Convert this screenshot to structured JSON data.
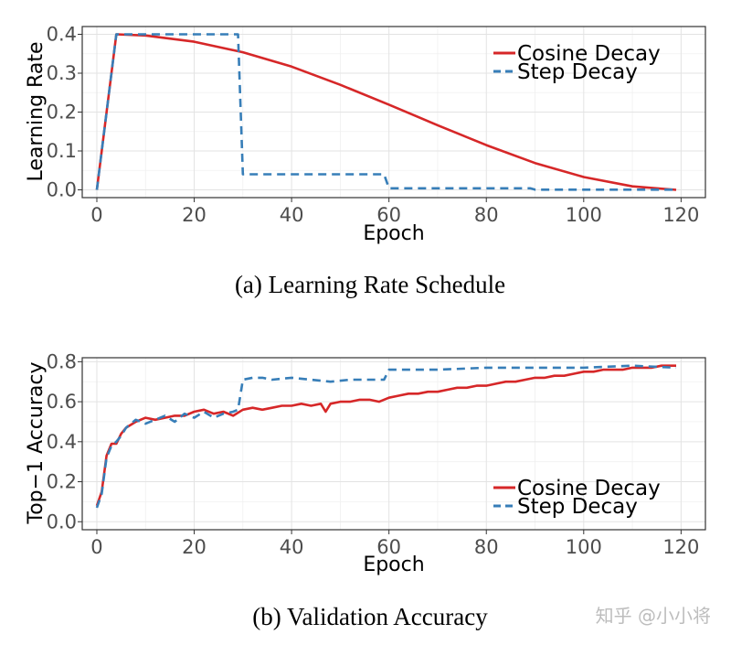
{
  "chart_data": [
    {
      "type": "line",
      "id": "lr",
      "caption": "(a) Learning Rate Schedule",
      "xlabel": "Epoch",
      "ylabel": "Learning Rate",
      "xlim": [
        -3,
        125
      ],
      "ylim": [
        -0.02,
        0.42
      ],
      "xticks": [
        0,
        20,
        40,
        60,
        80,
        100,
        120
      ],
      "xtick_labels": [
        "0",
        "20",
        "40",
        "60",
        "80",
        "100",
        "120"
      ],
      "yticks": [
        0.0,
        0.1,
        0.2,
        0.3,
        0.4
      ],
      "ytick_labels": [
        "0.0",
        "0.1",
        "0.2",
        "0.3",
        "0.4"
      ],
      "grid": true,
      "legend_position": "top-right",
      "series": [
        {
          "name": "Cosine Decay",
          "color": "#d62728",
          "style": "solid",
          "x": [
            0,
            4,
            10,
            20,
            30,
            40,
            50,
            60,
            70,
            80,
            90,
            100,
            110,
            119
          ],
          "y": [
            0.0,
            0.4,
            0.397,
            0.381,
            0.354,
            0.317,
            0.27,
            0.219,
            0.166,
            0.115,
            0.069,
            0.033,
            0.009,
            0.0
          ]
        },
        {
          "name": "Step Decay",
          "color": "#377eb8",
          "style": "dashed",
          "x": [
            0,
            4,
            29,
            30,
            59,
            60,
            89,
            90,
            119
          ],
          "y": [
            0.0,
            0.4,
            0.4,
            0.04,
            0.04,
            0.004,
            0.004,
            0.0004,
            0.0004
          ]
        }
      ]
    },
    {
      "type": "line",
      "id": "acc",
      "caption": "(b) Validation Accuracy",
      "xlabel": "Epoch",
      "ylabel": "Top−1 Accuracy",
      "xlim": [
        -3,
        125
      ],
      "ylim": [
        -0.04,
        0.82
      ],
      "xticks": [
        0,
        20,
        40,
        60,
        80,
        100,
        120
      ],
      "xtick_labels": [
        "0",
        "20",
        "40",
        "60",
        "80",
        "100",
        "120"
      ],
      "yticks": [
        0.0,
        0.2,
        0.4,
        0.6,
        0.8
      ],
      "ytick_labels": [
        "0.0",
        "0.2",
        "0.4",
        "0.6",
        "0.8"
      ],
      "grid": true,
      "legend_position": "bottom-right",
      "series": [
        {
          "name": "Cosine Decay",
          "color": "#d62728",
          "style": "solid",
          "x": [
            0,
            1,
            2,
            3,
            4,
            5,
            6,
            8,
            10,
            12,
            14,
            16,
            18,
            20,
            22,
            24,
            26,
            28,
            30,
            32,
            34,
            36,
            38,
            40,
            42,
            44,
            46,
            47,
            48,
            50,
            52,
            54,
            56,
            58,
            60,
            62,
            64,
            66,
            68,
            70,
            72,
            74,
            76,
            78,
            80,
            82,
            84,
            86,
            88,
            90,
            92,
            94,
            96,
            98,
            100,
            102,
            104,
            106,
            108,
            110,
            112,
            114,
            116,
            118,
            119
          ],
          "y": [
            0.08,
            0.15,
            0.33,
            0.39,
            0.39,
            0.44,
            0.47,
            0.5,
            0.52,
            0.51,
            0.52,
            0.53,
            0.53,
            0.55,
            0.56,
            0.54,
            0.55,
            0.53,
            0.56,
            0.57,
            0.56,
            0.57,
            0.58,
            0.58,
            0.59,
            0.58,
            0.59,
            0.55,
            0.59,
            0.6,
            0.6,
            0.61,
            0.61,
            0.6,
            0.62,
            0.63,
            0.64,
            0.64,
            0.65,
            0.65,
            0.66,
            0.67,
            0.67,
            0.68,
            0.68,
            0.69,
            0.7,
            0.7,
            0.71,
            0.72,
            0.72,
            0.73,
            0.73,
            0.74,
            0.75,
            0.75,
            0.76,
            0.76,
            0.76,
            0.77,
            0.77,
            0.77,
            0.78,
            0.78,
            0.78
          ]
        },
        {
          "name": "Step Decay",
          "color": "#377eb8",
          "style": "dashed",
          "x": [
            0,
            1,
            2,
            3,
            4,
            5,
            6,
            7,
            8,
            10,
            12,
            14,
            16,
            18,
            20,
            22,
            24,
            26,
            28,
            29,
            30,
            32,
            34,
            36,
            40,
            44,
            48,
            52,
            56,
            59,
            60,
            64,
            70,
            80,
            90,
            100,
            110,
            119
          ],
          "y": [
            0.07,
            0.14,
            0.32,
            0.38,
            0.4,
            0.43,
            0.47,
            0.49,
            0.51,
            0.49,
            0.51,
            0.53,
            0.5,
            0.54,
            0.52,
            0.55,
            0.52,
            0.54,
            0.55,
            0.56,
            0.71,
            0.72,
            0.72,
            0.71,
            0.72,
            0.71,
            0.7,
            0.71,
            0.71,
            0.71,
            0.76,
            0.76,
            0.76,
            0.77,
            0.77,
            0.77,
            0.78,
            0.77
          ]
        }
      ]
    }
  ],
  "watermark": "知乎 @小小将"
}
